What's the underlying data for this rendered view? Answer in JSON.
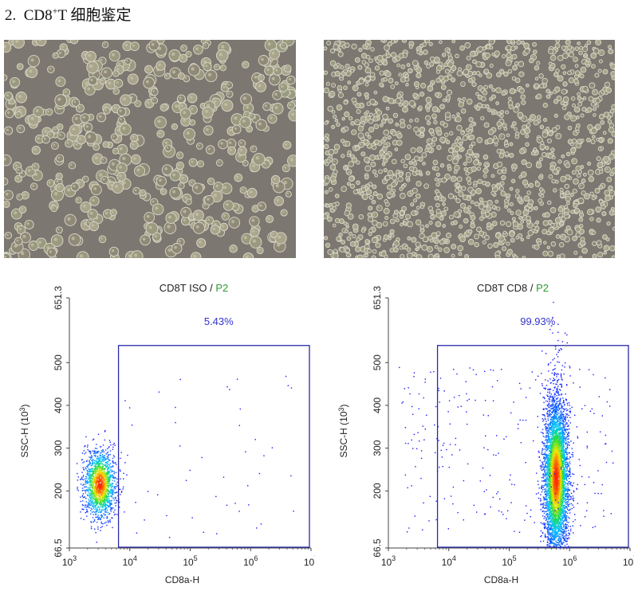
{
  "figure": {
    "number": "2.",
    "title_prefix": "CD8",
    "title_sup": "+",
    "title_suffix": "T 细胞鉴定"
  },
  "colors": {
    "gate": "#2a2aa8",
    "gate_label": "#2e9a2e",
    "percent_text": "#3333cc",
    "density_low": "#1a1aff",
    "density_high": "#ff2000",
    "micro_bg": "#7c7770"
  },
  "chart_data": [
    {
      "type": "scatter",
      "subtype": "flow-cytometry-density-dot-plot",
      "title": "CD8T ISO",
      "title_separator": " / ",
      "gate_label": "P2",
      "xlabel": "CD8a-H",
      "ylabel": "SSC-H (10",
      "ylabel_exp": "3",
      "ylabel_end": ")",
      "x_scale": "log",
      "xlim": [
        1000,
        10000000
      ],
      "ylim": [
        66.5,
        651.3
      ],
      "x_ticks": [
        {
          "base": "10",
          "exp": "3",
          "value": 1000
        },
        {
          "base": "10",
          "exp": "4",
          "value": 10000
        },
        {
          "base": "10",
          "exp": "5",
          "value": 100000
        },
        {
          "base": "10",
          "exp": "6",
          "value": 1000000
        },
        {
          "base": "10",
          "exp": "7",
          "value": 10000000
        }
      ],
      "y_ticks": [
        "66.5",
        "200",
        "300",
        "400",
        "500",
        "651.3"
      ],
      "gate": {
        "x_min": 6500,
        "x_max": 10000000,
        "y_min": 66.5,
        "y_max": 540
      },
      "gate_percent": "5.43%",
      "population": {
        "center_x": 3200,
        "center_y": 215,
        "spread_log_x": 0.13,
        "spread_y": 40
      },
      "grid": false,
      "legend": "none"
    },
    {
      "type": "scatter",
      "subtype": "flow-cytometry-density-dot-plot",
      "title": "CD8T CD8",
      "title_separator": " / ",
      "gate_label": "P2",
      "xlabel": "CD8a-H",
      "ylabel": "SSC-H (10",
      "ylabel_exp": "3",
      "ylabel_end": ")",
      "x_scale": "log",
      "xlim": [
        1000,
        10000000
      ],
      "ylim": [
        66.5,
        651.3
      ],
      "x_ticks": [
        {
          "base": "10",
          "exp": "3",
          "value": 1000
        },
        {
          "base": "10",
          "exp": "4",
          "value": 10000
        },
        {
          "base": "10",
          "exp": "5",
          "value": 100000
        },
        {
          "base": "10",
          "exp": "6",
          "value": 1000000
        },
        {
          "base": "10",
          "exp": "7",
          "value": 10000000
        }
      ],
      "y_ticks": [
        "66.5",
        "200",
        "300",
        "400",
        "500",
        "651.3"
      ],
      "gate": {
        "x_min": 6500,
        "x_max": 10000000,
        "y_min": 66.5,
        "y_max": 540
      },
      "gate_percent": "99.93%",
      "population": {
        "center_x": 600000,
        "center_y": 230,
        "spread_log_x": 0.1,
        "spread_y": 85
      },
      "grid": false,
      "legend": "none"
    }
  ]
}
